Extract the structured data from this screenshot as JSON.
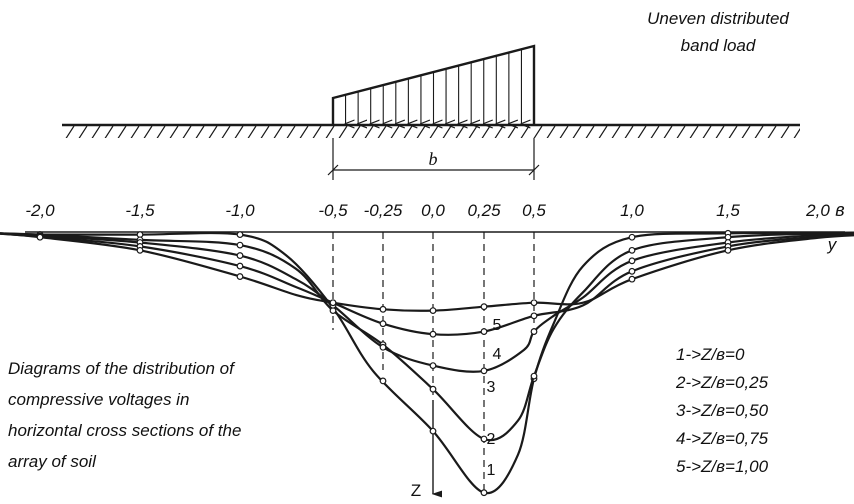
{
  "load_caption": [
    "Uneven distributed",
    "band load"
  ],
  "width_label": "b",
  "y_ticks": [
    {
      "label": "-2,0",
      "y": -2.0
    },
    {
      "label": "-1,5",
      "y": -1.5
    },
    {
      "label": "-1,0",
      "y": -1.0
    },
    {
      "label": "-0,5",
      "y": -0.5
    },
    {
      "label": "-0,25",
      "y": -0.25
    },
    {
      "label": "0,0",
      "y": 0.0
    },
    {
      "label": "0,25",
      "y": 0.25
    },
    {
      "label": "0,5",
      "y": 0.5
    },
    {
      "label": "1,0",
      "y": 1.0
    },
    {
      "label": "1,5",
      "y": 1.5
    },
    {
      "label": "2,0",
      "y": 2.0
    }
  ],
  "unit_label": "в",
  "y_axis_label": "y",
  "z_axis_label": "Z",
  "description": [
    "Diagrams of the distribution of",
    "compressive voltages in",
    "horizontal cross sections of the",
    "array of soil"
  ],
  "legend": [
    "1->Z/в=0",
    "2->Z/в=0,25",
    "3->Z/в=0,50",
    "4->Z/в=0,75",
    "5->Z/в=1,00"
  ],
  "chart_data": {
    "type": "line",
    "x_positions": [
      -2.0,
      -1.5,
      -1.0,
      -0.5,
      -0.25,
      0.0,
      0.25,
      0.5,
      1.0,
      1.5,
      2.0
    ],
    "series": [
      {
        "name": "1",
        "min_y": 0.25,
        "min_depth": 1.0
      },
      {
        "name": "2",
        "min_y": 0.25,
        "min_depth": 0.79
      },
      {
        "name": "3",
        "min_y": 0.25,
        "min_depth": 0.53
      },
      {
        "name": "4",
        "min_y": 0.1,
        "min_depth": 0.38
      },
      {
        "name": "5",
        "min_y": 0.05,
        "min_depth": 0.3
      }
    ]
  }
}
